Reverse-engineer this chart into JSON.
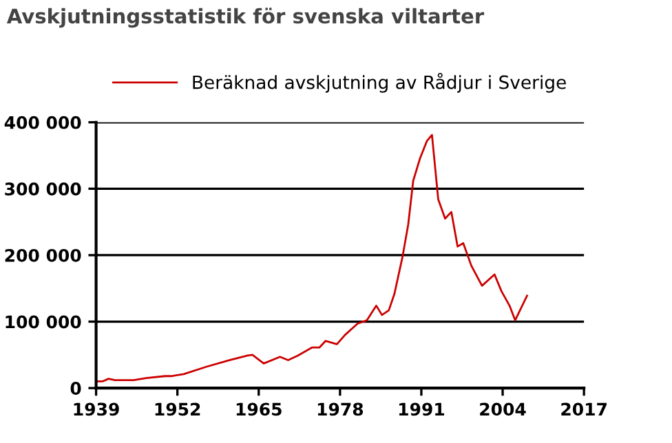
{
  "chart_data": {
    "type": "line",
    "title": "Avskjutningsstatistik för svenska viltarter",
    "x": [
      1939,
      1940,
      1941,
      1942,
      1945,
      1947,
      1950,
      1951,
      1953,
      1956.6,
      1960.3,
      1963.2,
      1964,
      1965.8,
      1968.4,
      1969.7,
      1971.3,
      1973.5,
      1974.7,
      1975.7,
      1977.5,
      1978.8,
      1980.8,
      1982.3,
      1983.8,
      1984.7,
      1985.8,
      1986.7,
      1988,
      1988.9,
      1989.7,
      1990.8,
      1991.9,
      1992.7,
      1993.7,
      1994.8,
      1995.8,
      1996.8,
      1997.7,
      1999,
      2000.7,
      2002.7,
      2003.8,
      2005.1,
      2006,
      2007.9
    ],
    "series": [
      {
        "name": "Beräknad avskjutning av Rådjur i Sverige",
        "color": "#cc0000",
        "values": [
          10000,
          10000,
          14000,
          12000,
          12000,
          15000,
          18000,
          18000,
          21000,
          32000,
          42000,
          49000,
          50000,
          37000,
          47000,
          42000,
          49000,
          61000,
          61000,
          71000,
          66000,
          80000,
          97000,
          102000,
          124000,
          110000,
          117000,
          142000,
          198000,
          246000,
          312000,
          346000,
          372000,
          381000,
          284000,
          255000,
          265000,
          213000,
          218000,
          184000,
          154000,
          171000,
          146000,
          124000,
          102000,
          139000
        ]
      }
    ],
    "xlim": [
      1939,
      2017
    ],
    "xticks": [
      1939,
      1952,
      1965,
      1978,
      1991,
      2004,
      2017
    ],
    "ylim": [
      0,
      400000
    ],
    "yticks": [
      {
        "value": 0,
        "label": "0"
      },
      {
        "value": 100000,
        "label": "100 000"
      },
      {
        "value": 200000,
        "label": "200 000"
      },
      {
        "value": 300000,
        "label": "300 000"
      },
      {
        "value": 400000,
        "label": "400 000"
      }
    ],
    "grid": "y",
    "legend": "top",
    "marker": "none",
    "line_style": "solid"
  }
}
